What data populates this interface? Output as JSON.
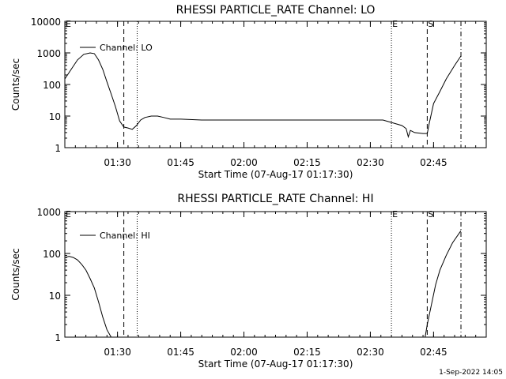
{
  "footer": {
    "timestamp": "1-Sep-2022 14:05"
  },
  "chart_data": [
    {
      "type": "line",
      "title": "RHESSI PARTICLE_RATE Channel: LO",
      "xlabel": "Start Time (07-Aug-17 01:17:30)",
      "ylabel": "Counts/sec",
      "yscale": "log",
      "ylim": [
        1,
        10000
      ],
      "xlim_minutes_after_start": [
        0,
        100
      ],
      "x_tick_labels": [
        "01:30",
        "01:45",
        "02:00",
        "02:15",
        "02:30",
        "02:45"
      ],
      "y_tick_labels": [
        "1",
        "10",
        "100",
        "1000",
        "10000"
      ],
      "legend": {
        "position": "top-left",
        "entries": [
          "Channel: LO"
        ]
      },
      "markers": [
        {
          "time": "01:31:30",
          "style": "dashed",
          "label": ""
        },
        {
          "time": "01:34:40",
          "style": "dotted",
          "label": ""
        },
        {
          "time": "02:35:00",
          "style": "dotted",
          "label": "E"
        },
        {
          "time": "02:43:30",
          "style": "dashed",
          "label": "S"
        },
        {
          "time": "02:51:30",
          "style": "dashdot",
          "label": ""
        }
      ],
      "corner_label": "E",
      "series": [
        {
          "name": "Channel: LO",
          "points": [
            [
              "01:17:30",
              150
            ],
            [
              "01:19:00",
              300
            ],
            [
              "01:20:30",
              600
            ],
            [
              "01:22:00",
              900
            ],
            [
              "01:23:30",
              1000
            ],
            [
              "01:24:30",
              950
            ],
            [
              "01:25:30",
              600
            ],
            [
              "01:26:30",
              300
            ],
            [
              "01:27:30",
              120
            ],
            [
              "01:28:30",
              50
            ],
            [
              "01:29:30",
              20
            ],
            [
              "01:30:30",
              7
            ],
            [
              "01:31:30",
              4.5
            ],
            [
              "01:32:30",
              4.2
            ],
            [
              "01:33:30",
              3.8
            ],
            [
              "01:34:30",
              5
            ],
            [
              "01:35:30",
              7.5
            ],
            [
              "01:36:30",
              9
            ],
            [
              "01:38:00",
              10
            ],
            [
              "01:39:30",
              10
            ],
            [
              "01:41:00",
              9
            ],
            [
              "01:42:30",
              8
            ],
            [
              "01:45:00",
              8
            ],
            [
              "01:50:00",
              7.5
            ],
            [
              "01:55:00",
              7.5
            ],
            [
              "02:00:00",
              7.5
            ],
            [
              "02:05:00",
              7.5
            ],
            [
              "02:10:00",
              7.5
            ],
            [
              "02:15:00",
              7.5
            ],
            [
              "02:20:00",
              7.5
            ],
            [
              "02:25:00",
              7.5
            ],
            [
              "02:30:00",
              7.5
            ],
            [
              "02:33:00",
              7.5
            ],
            [
              "02:35:30",
              6
            ],
            [
              "02:37:30",
              5
            ],
            [
              "02:38:30",
              4
            ],
            [
              "02:39:00",
              2.2
            ],
            [
              "02:39:30",
              3.5
            ],
            [
              "02:40:30",
              3
            ],
            [
              "02:42:30",
              2.8
            ],
            [
              "02:43:30",
              2.8
            ],
            [
              "02:44:00",
              6
            ],
            [
              "02:45:00",
              25
            ],
            [
              "02:46:30",
              60
            ],
            [
              "02:48:00",
              150
            ],
            [
              "02:50:00",
              400
            ],
            [
              "02:51:30",
              800
            ]
          ]
        }
      ]
    },
    {
      "type": "line",
      "title": "RHESSI PARTICLE_RATE Channel: HI",
      "xlabel": "Start Time (07-Aug-17 01:17:30)",
      "ylabel": "Counts/sec",
      "yscale": "log",
      "ylim": [
        1,
        1000
      ],
      "xlim_minutes_after_start": [
        0,
        100
      ],
      "x_tick_labels": [
        "01:30",
        "01:45",
        "02:00",
        "02:15",
        "02:30",
        "02:45"
      ],
      "y_tick_labels": [
        "1",
        "10",
        "100",
        "1000"
      ],
      "legend": {
        "position": "top-left",
        "entries": [
          "Channel: HI"
        ]
      },
      "markers": [
        {
          "time": "01:31:30",
          "style": "dashed",
          "label": ""
        },
        {
          "time": "01:34:40",
          "style": "dotted",
          "label": ""
        },
        {
          "time": "02:35:00",
          "style": "dotted",
          "label": "E"
        },
        {
          "time": "02:43:30",
          "style": "dashed",
          "label": "S"
        },
        {
          "time": "02:51:30",
          "style": "dashdot",
          "label": ""
        }
      ],
      "corner_label": "E",
      "series": [
        {
          "name": "Channel: HI",
          "points": [
            [
              "01:17:30",
              80
            ],
            [
              "01:18:30",
              85
            ],
            [
              "01:19:30",
              80
            ],
            [
              "01:20:30",
              70
            ],
            [
              "01:21:30",
              55
            ],
            [
              "01:22:30",
              40
            ],
            [
              "01:23:30",
              25
            ],
            [
              "01:24:30",
              15
            ],
            [
              "01:25:30",
              7
            ],
            [
              "01:26:30",
              3
            ],
            [
              "01:27:30",
              1.5
            ],
            [
              "01:28:30",
              1
            ]
          ]
        },
        {
          "name": "Channel: HI",
          "points": [
            [
              "02:43:00",
              1
            ],
            [
              "02:43:30",
              2
            ],
            [
              "02:44:30",
              6
            ],
            [
              "02:45:30",
              18
            ],
            [
              "02:46:30",
              40
            ],
            [
              "02:48:00",
              90
            ],
            [
              "02:49:30",
              180
            ],
            [
              "02:51:30",
              350
            ]
          ]
        }
      ]
    }
  ]
}
